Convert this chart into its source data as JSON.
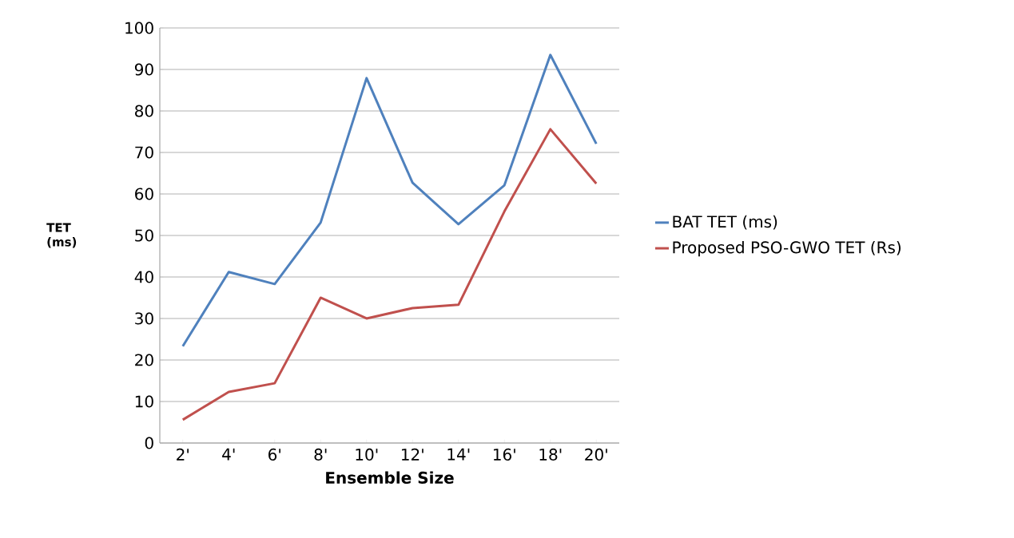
{
  "chart_data": {
    "type": "line",
    "xlabel": "Ensemble Size",
    "ylabel": "TET (ms)",
    "categories": [
      "2'",
      "4'",
      "6'",
      "8'",
      "10'",
      "12'",
      "14'",
      "16'",
      "18'",
      "20'"
    ],
    "series": [
      {
        "name": "BAT TET (ms)",
        "color": "#4f81bd",
        "values": [
          23.3,
          41.2,
          38.3,
          53.1,
          87.9,
          62.7,
          52.7,
          62.1,
          93.5,
          72.1
        ]
      },
      {
        "name": "Proposed PSO-GWO TET (Rs)",
        "color": "#c0504d",
        "values": [
          5.6,
          12.3,
          14.4,
          35,
          30,
          32.5,
          33.3,
          55.8,
          75.6,
          62.5
        ]
      }
    ],
    "ylim": [
      0,
      100
    ],
    "yticks": [
      0,
      10,
      20,
      30,
      40,
      50,
      60,
      70,
      80,
      90,
      100
    ],
    "grid": "y",
    "legend": "right"
  }
}
